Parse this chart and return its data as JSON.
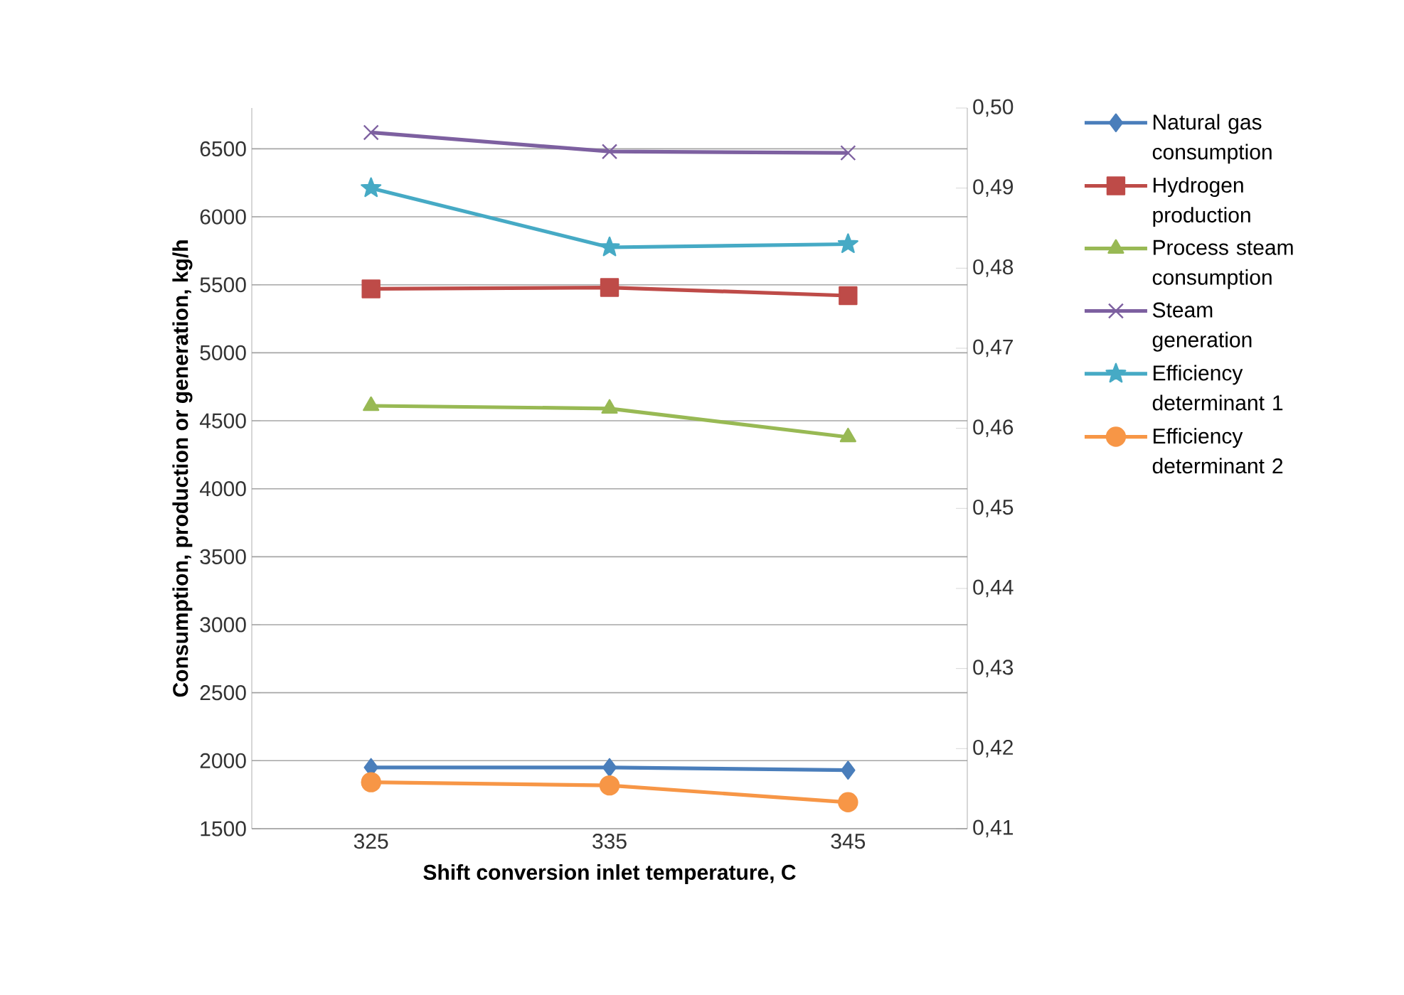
{
  "chart_data": {
    "type": "line",
    "xlabel": "Shift conversion inlet temperature, C",
    "ylabel": "Consumption, production or generation, kg/h",
    "categories": [
      "325",
      "335",
      "345"
    ],
    "ylim": [
      1500,
      6800
    ],
    "yticks": [
      1500,
      2000,
      2500,
      3000,
      3500,
      4000,
      4500,
      5000,
      5500,
      6000,
      6500
    ],
    "y2lim": [
      0.41,
      0.5
    ],
    "y2ticks": [
      {
        "value": 0.41,
        "label": "0,41"
      },
      {
        "value": 0.42,
        "label": "0,42"
      },
      {
        "value": 0.43,
        "label": "0,43"
      },
      {
        "value": 0.44,
        "label": "0,44"
      },
      {
        "value": 0.45,
        "label": "0,45"
      },
      {
        "value": 0.46,
        "label": "0,46"
      },
      {
        "value": 0.47,
        "label": "0,47"
      },
      {
        "value": 0.48,
        "label": "0,48"
      },
      {
        "value": 0.49,
        "label": "0,49"
      },
      {
        "value": 0.5,
        "label": "0,50"
      }
    ],
    "grid": "y",
    "legend": "right",
    "series": [
      {
        "name": "Natural gas consumption",
        "color": "#4a7ebb",
        "marker": "diamond",
        "values": [
          1950,
          1950,
          1930
        ]
      },
      {
        "name": "Hydrogen production",
        "color": "#be4b48",
        "marker": "square",
        "values": [
          5470,
          5480,
          5420
        ]
      },
      {
        "name": "Process steam consumption",
        "color": "#98b954",
        "marker": "triangle",
        "values": [
          4610,
          4590,
          4380
        ]
      },
      {
        "name": "Steam generation",
        "color": "#7d60a0",
        "marker": "cross",
        "values": [
          6620,
          6480,
          6470
        ]
      },
      {
        "name": "Efficiency determinant 1",
        "color": "#46aac5",
        "marker": "star",
        "axis": "y2",
        "values": [
          0.49,
          0.4826,
          0.483
        ]
      },
      {
        "name": "Efficiency determinant 2",
        "color": "#f79646",
        "marker": "circle",
        "axis": "y2",
        "values": [
          0.4158,
          0.4154,
          0.4133
        ]
      }
    ]
  }
}
